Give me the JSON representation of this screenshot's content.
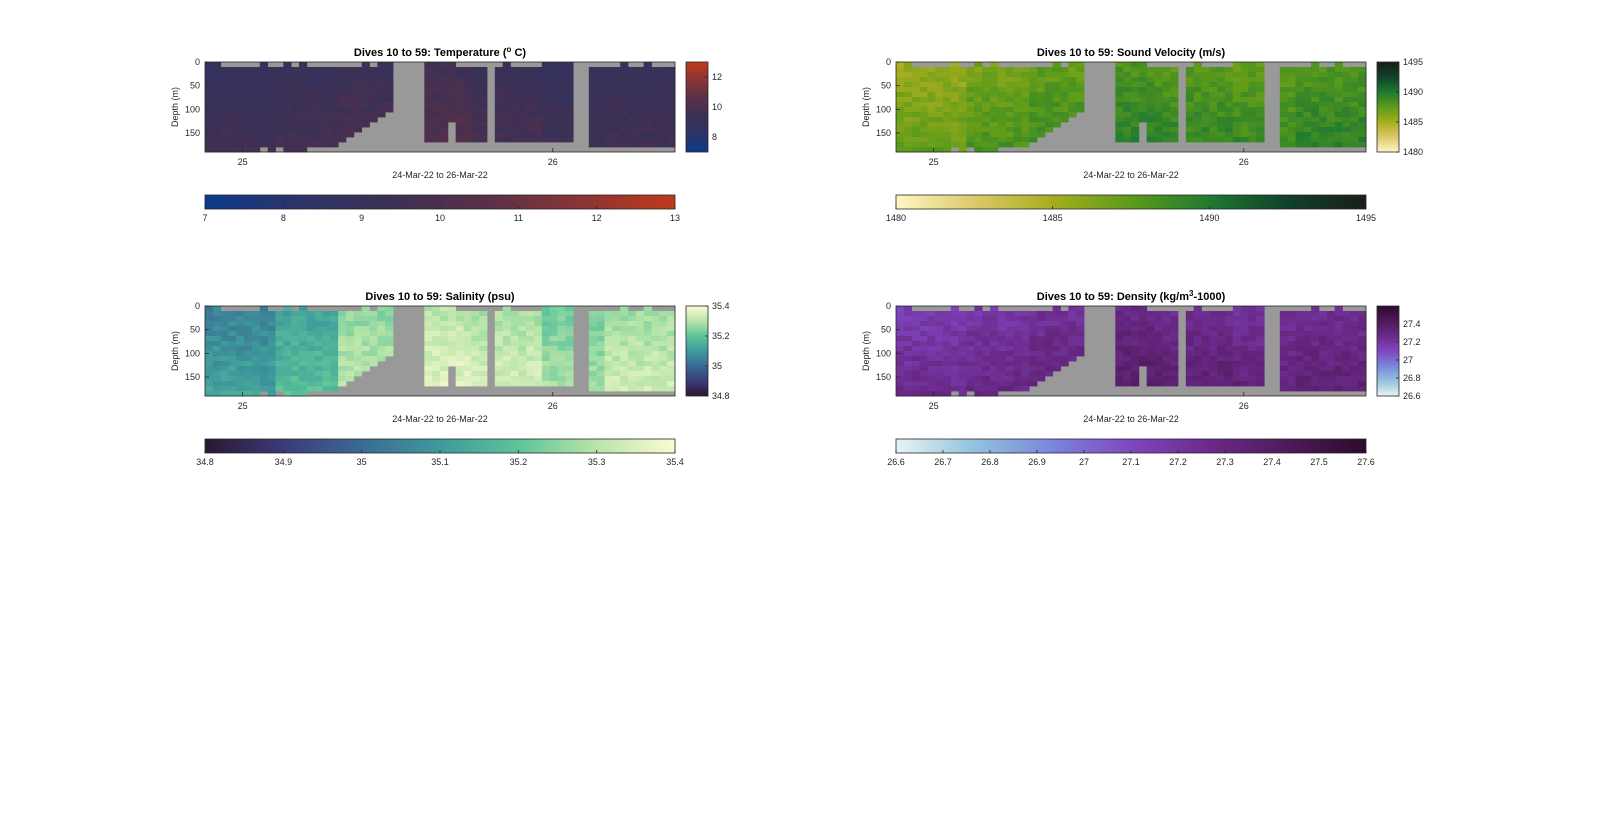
{
  "figure": {
    "background": "#ffffff",
    "nodata_color": "#999999"
  },
  "chart_data": [
    {
      "type": "heatmap",
      "id": "temperature",
      "title": "Dives 10 to 59: Temperature (",
      "title_sup": "o",
      "title_post": " C)",
      "xlabel": "24-Mar-22 to 26-Mar-22",
      "ylabel": "Depth (m)",
      "x_ticks": [
        "25",
        "26"
      ],
      "y_ticks": [
        "0",
        "50",
        "100",
        "150"
      ],
      "ylim": [
        0,
        190
      ],
      "color_range": [
        7,
        13
      ],
      "colormap": [
        "#0a3a8c",
        "#2d3467",
        "#3b3055",
        "#5a3048",
        "#8a3535",
        "#c0391a"
      ],
      "sample_values": [
        8.9,
        9.1,
        9.3,
        9.6,
        9.2,
        8.9,
        9.0
      ],
      "side_colorbar_ticks": [
        "12",
        "10",
        "8"
      ],
      "bottom_colorbar_ticks": [
        "7",
        "8",
        "9",
        "10",
        "11",
        "12",
        "13"
      ]
    },
    {
      "type": "heatmap",
      "id": "sound_velocity",
      "title": "Dives 10 to 59: Sound Velocity (m/s)",
      "xlabel": "24-Mar-22 to 26-Mar-22",
      "ylabel": "Depth (m)",
      "x_ticks": [
        "25",
        "26"
      ],
      "y_ticks": [
        "0",
        "50",
        "100",
        "150"
      ],
      "ylim": [
        0,
        190
      ],
      "color_range": [
        1480,
        1495
      ],
      "colormap": [
        "#fdf7c5",
        "#dcc96a",
        "#a6ad1e",
        "#5c9b1a",
        "#1f7a30",
        "#10402a",
        "#1a1f18"
      ],
      "sample_values": [
        1485.5,
        1486.5,
        1487.2,
        1488.0,
        1487.6,
        1487.3,
        1487.9
      ],
      "side_colorbar_ticks": [
        "1495",
        "1490",
        "1485",
        "1480"
      ],
      "bottom_colorbar_ticks": [
        "1480",
        "1485",
        "1490",
        "1495"
      ]
    },
    {
      "type": "heatmap",
      "id": "salinity",
      "title": "Dives 10 to 59: Salinity (psu)",
      "xlabel": "24-Mar-22 to 26-Mar-22",
      "ylabel": "Depth (m)",
      "x_ticks": [
        "25",
        "26"
      ],
      "y_ticks": [
        "0",
        "50",
        "100",
        "150"
      ],
      "ylim": [
        0,
        190
      ],
      "color_range": [
        34.8,
        35.4
      ],
      "colormap": [
        "#2a1832",
        "#3b3a78",
        "#3a6b95",
        "#3e9a9b",
        "#5cc49a",
        "#b8e5a8",
        "#fdfbd4"
      ],
      "sample_values": [
        35.05,
        35.12,
        35.25,
        35.3,
        35.28,
        35.22,
        35.27
      ],
      "side_colorbar_ticks": [
        "35.4",
        "35.2",
        "35",
        "34.8"
      ],
      "bottom_colorbar_ticks": [
        "34.8",
        "34.9",
        "35",
        "35.1",
        "35.2",
        "35.3",
        "35.4"
      ]
    },
    {
      "type": "heatmap",
      "id": "density",
      "title": "Dives 10 to 59: Density (kg/m",
      "title_sup": "3",
      "title_post": "-1000)",
      "xlabel": "24-Mar-22 to 26-Mar-22",
      "ylabel": "Depth (m)",
      "x_ticks": [
        "25",
        "26"
      ],
      "y_ticks": [
        "0",
        "50",
        "100",
        "150"
      ],
      "ylim": [
        0,
        190
      ],
      "color_range": [
        26.6,
        27.6
      ],
      "colormap": [
        "#e6f4f4",
        "#93c2dd",
        "#7a86dd",
        "#7f46c0",
        "#6b2a8a",
        "#4f1a5b",
        "#2d0a2a"
      ],
      "sample_values": [
        27.15,
        27.18,
        27.22,
        27.28,
        27.25,
        27.22,
        27.24
      ],
      "side_colorbar_ticks": [
        "27.4",
        "27.2",
        "27",
        "26.8",
        "26.6"
      ],
      "bottom_colorbar_ticks": [
        "26.6",
        "26.7",
        "26.8",
        "26.9",
        "27",
        "27.1",
        "27.2",
        "27.3",
        "27.4",
        "27.5",
        "27.6"
      ]
    }
  ]
}
